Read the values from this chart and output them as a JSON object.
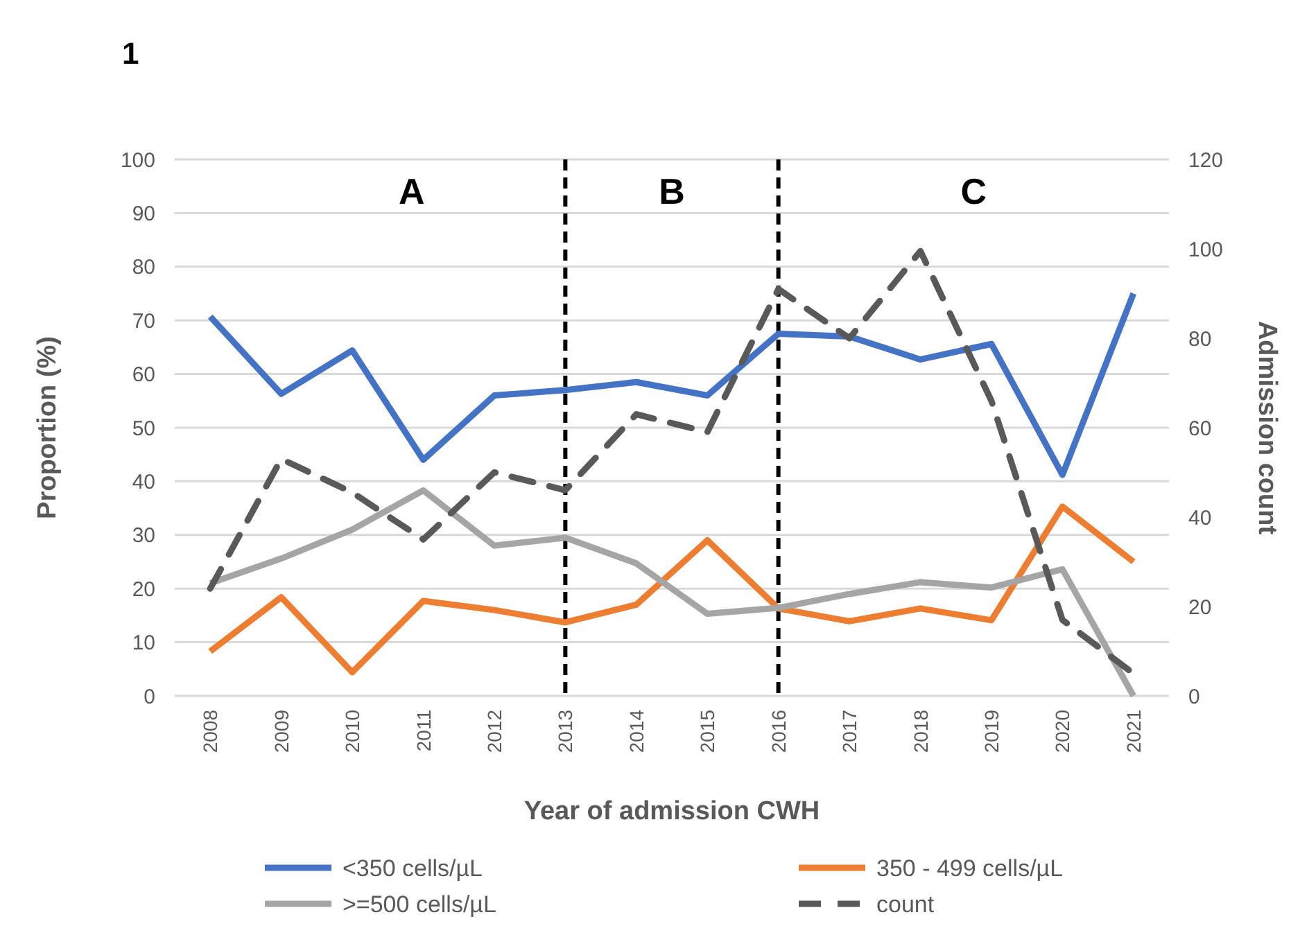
{
  "chart_data": {
    "type": "line",
    "title": "1",
    "xlabel": "Year of admission CWH",
    "ylabel": "Proportion (%)",
    "y2label": "Admission count",
    "categories": [
      "2008",
      "2009",
      "2010",
      "2011",
      "2012",
      "2013",
      "2014",
      "2015",
      "2016",
      "2017",
      "2018",
      "2019",
      "2020",
      "2021"
    ],
    "series": [
      {
        "name": "<350 cells/µL",
        "color": "#4472c4",
        "values": [
          70.7,
          56.3,
          64.4,
          44,
          56,
          57,
          58.5,
          56,
          67.5,
          67,
          62.7,
          65.6,
          41.2,
          75
        ]
      },
      {
        "name": "350 - 499 cells/µL",
        "color": "#ed7d31",
        "values": [
          8.3,
          18.4,
          4.4,
          17.7,
          16,
          13.7,
          17,
          29,
          16.3,
          13.9,
          16.3,
          14.1,
          35.3,
          25
        ]
      },
      {
        "name": ">=500 cells/µL",
        "color": "#a5a5a5",
        "values": [
          21,
          25.6,
          31,
          38.3,
          28,
          29.5,
          24.7,
          15.3,
          16.4,
          19,
          21.2,
          20.2,
          23.6,
          0
        ]
      },
      {
        "name": "count",
        "color": "#595959",
        "axis": "y2",
        "line_style": "dashed",
        "values": [
          24,
          53,
          45.5,
          35,
          50,
          46,
          63,
          59,
          91,
          80,
          99.5,
          66,
          17,
          5
        ]
      }
    ],
    "ylim": [
      0,
      100
    ],
    "yticks": [
      0,
      10,
      20,
      30,
      40,
      50,
      60,
      70,
      80,
      90,
      100
    ],
    "y2lim": [
      0,
      120
    ],
    "y2ticks": [
      0,
      20,
      40,
      60,
      80,
      100,
      120
    ],
    "ref_lines": [
      {
        "axis": "x",
        "value": "2013",
        "color": "#000000",
        "line_style": "dashed"
      },
      {
        "axis": "x",
        "value": "2016",
        "color": "#000000",
        "line_style": "dashed"
      }
    ],
    "annotations": [
      "A",
      "B",
      "C"
    ],
    "grid": "y",
    "legend": "bottom",
    "marker": "none",
    "line_style": "solid"
  }
}
